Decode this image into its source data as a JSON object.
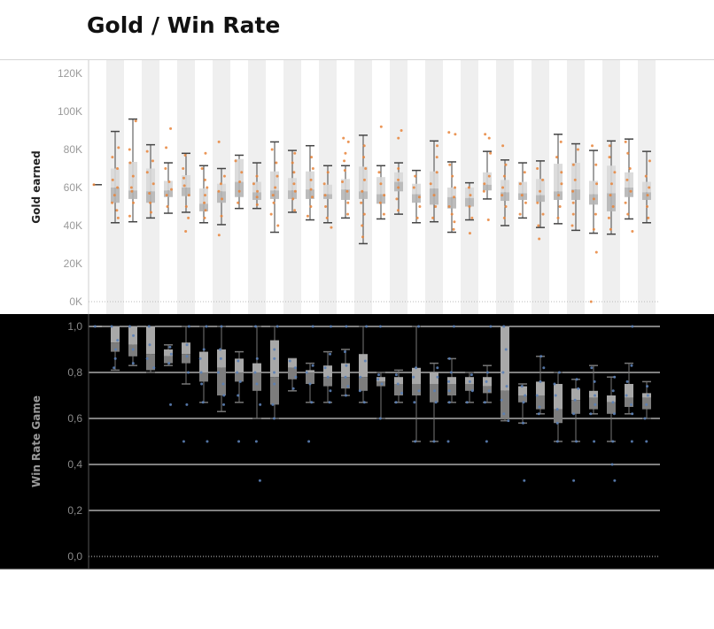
{
  "title": "Gold / Win Rate",
  "colors": {
    "top_background": "#ffffff",
    "top_band": "#efefef",
    "top_points": "#e8843a",
    "top_whisker": "#444444",
    "top_box": "#c8c8c8",
    "bottom_background": "#000000",
    "bottom_gridline": "#ffffff",
    "bottom_points": "#5b7fb5",
    "bottom_whisker": "#777777",
    "bottom_box": "#9a9a9a"
  },
  "chart_data": [
    {
      "type": "boxplot",
      "ylabel": "Gold earned",
      "ylim": [
        0,
        125000
      ],
      "yticks": [
        "0K",
        "20K",
        "40K",
        "60K",
        "80K",
        "100K",
        "120K"
      ],
      "ytick_values": [
        0,
        20000,
        40000,
        60000,
        80000,
        100000,
        120000
      ],
      "grid": false,
      "alternating_bands": true,
      "n_groups": 32,
      "boxes": [
        {
          "min": 61500,
          "q1": 61500,
          "median": 61500,
          "q3": 61500,
          "max": 61500,
          "points": [
            61500
          ]
        },
        {
          "min": 41500,
          "q1": 52000,
          "median": 60000,
          "q3": 70000,
          "max": 89500,
          "points": [
            44000,
            48000,
            52000,
            56000,
            60000,
            64000,
            70000,
            76000,
            81000
          ]
        },
        {
          "min": 42000,
          "q1": 54000,
          "median": 58500,
          "q3": 73500,
          "max": 96000,
          "points": [
            45000,
            52000,
            58000,
            60000,
            66000,
            73000,
            80000,
            95000
          ]
        },
        {
          "min": 44000,
          "q1": 52000,
          "median": 58000,
          "q3": 70000,
          "max": 82500,
          "points": [
            47000,
            52000,
            57000,
            62000,
            68000,
            74000,
            79000
          ]
        },
        {
          "min": 46500,
          "q1": 55000,
          "median": 58500,
          "q3": 63500,
          "max": 73000,
          "points": [
            50000,
            56000,
            59000,
            63000,
            70000,
            81000,
            91000
          ]
        },
        {
          "min": 47000,
          "q1": 55500,
          "median": 60000,
          "q3": 66500,
          "max": 78000,
          "points": [
            37000,
            44000,
            50000,
            56000,
            61000,
            65000,
            70000,
            77000
          ]
        },
        {
          "min": 41500,
          "q1": 47500,
          "median": 51500,
          "q3": 59500,
          "max": 71500,
          "points": [
            44000,
            48000,
            52000,
            56000,
            60000,
            64000,
            70000,
            78000
          ]
        },
        {
          "min": 40500,
          "q1": 52000,
          "median": 58000,
          "q3": 62000,
          "max": 70000,
          "points": [
            35000,
            45000,
            54000,
            58000,
            62000,
            66000,
            84000
          ]
        },
        {
          "min": 49000,
          "q1": 55000,
          "median": 63000,
          "q3": 75000,
          "max": 77000,
          "points": [
            52000,
            58000,
            63000,
            68000,
            74000
          ]
        },
        {
          "min": 49000,
          "q1": 53500,
          "median": 57500,
          "q3": 63000,
          "max": 73000,
          "points": [
            51000,
            55000,
            58000,
            62000,
            66000
          ]
        },
        {
          "min": 36500,
          "q1": 54000,
          "median": 58500,
          "q3": 68500,
          "max": 84000,
          "points": [
            40000,
            46000,
            52000,
            56000,
            60000,
            66000,
            73000,
            80000
          ]
        },
        {
          "min": 47000,
          "q1": 54000,
          "median": 58500,
          "q3": 65000,
          "max": 79500,
          "points": [
            48000,
            54000,
            58000,
            62000,
            68000,
            73000,
            78000
          ]
        },
        {
          "min": 43000,
          "q1": 54000,
          "median": 59000,
          "q3": 68500,
          "max": 82000,
          "points": [
            45000,
            50000,
            55000,
            59000,
            64000,
            70000,
            76000
          ]
        },
        {
          "min": 41500,
          "q1": 54000,
          "median": 56500,
          "q3": 61500,
          "max": 71500,
          "points": [
            39000,
            44000,
            50000,
            56000,
            62000,
            68000
          ]
        },
        {
          "min": 44000,
          "q1": 53500,
          "median": 59000,
          "q3": 64500,
          "max": 71500,
          "points": [
            46000,
            52000,
            58000,
            63000,
            69000,
            74000,
            78000,
            84000,
            86000
          ]
        },
        {
          "min": 30500,
          "q1": 54000,
          "median": 58000,
          "q3": 71000,
          "max": 87500,
          "points": [
            34000,
            40000,
            46000,
            52000,
            58000,
            64000,
            70000,
            76000,
            82000
          ]
        },
        {
          "min": 43500,
          "q1": 51500,
          "median": 56500,
          "q3": 65500,
          "max": 71500,
          "points": [
            46000,
            52000,
            56000,
            62000,
            68000,
            92000
          ]
        },
        {
          "min": 46000,
          "q1": 58000,
          "median": 63000,
          "q3": 68000,
          "max": 73000,
          "points": [
            48000,
            54000,
            60000,
            64000,
            70000,
            86000,
            90000
          ]
        },
        {
          "min": 41500,
          "q1": 52000,
          "median": 56500,
          "q3": 62000,
          "max": 69000,
          "points": [
            44000,
            50000,
            55000,
            60000,
            66000
          ]
        },
        {
          "min": 42000,
          "q1": 51000,
          "median": 59500,
          "q3": 68500,
          "max": 84500,
          "points": [
            44000,
            50000,
            56000,
            62000,
            68000,
            76000,
            82000
          ]
        },
        {
          "min": 36500,
          "q1": 49000,
          "median": 55000,
          "q3": 60000,
          "max": 73500,
          "points": [
            38000,
            42000,
            46000,
            50000,
            55000,
            60000,
            66000,
            72000,
            88000,
            89000
          ]
        },
        {
          "min": 43000,
          "q1": 50000,
          "median": 54500,
          "q3": 60000,
          "max": 62500,
          "points": [
            36000,
            44000,
            50000,
            56000,
            60000
          ]
        },
        {
          "min": 54000,
          "q1": 58500,
          "median": 61500,
          "q3": 68000,
          "max": 79000,
          "points": [
            43000,
            58000,
            62000,
            66000,
            78000,
            86000,
            88000
          ]
        },
        {
          "min": 40000,
          "q1": 53000,
          "median": 57500,
          "q3": 64000,
          "max": 74500,
          "points": [
            44000,
            50000,
            56000,
            60000,
            66000,
            72000,
            82000
          ]
        },
        {
          "min": 44000,
          "q1": 53500,
          "median": 57000,
          "q3": 63000,
          "max": 73000,
          "points": [
            46000,
            52000,
            56000,
            62000,
            68000
          ]
        },
        {
          "min": 39000,
          "q1": 52500,
          "median": 56000,
          "q3": 64500,
          "max": 74000,
          "points": [
            33000,
            40000,
            46000,
            52000,
            58000,
            64000,
            70000
          ]
        },
        {
          "min": 41000,
          "q1": 53500,
          "median": 58000,
          "q3": 72500,
          "max": 88000,
          "points": [
            44000,
            50000,
            56000,
            62000,
            68000,
            76000,
            84000
          ]
        },
        {
          "min": 37500,
          "q1": 53500,
          "median": 59000,
          "q3": 73000,
          "max": 83000,
          "points": [
            40000,
            46000,
            52000,
            58000,
            64000,
            72000,
            80000
          ]
        },
        {
          "min": 36000,
          "q1": 51000,
          "median": 56500,
          "q3": 63500,
          "max": 79500,
          "points": [
            0,
            26000,
            38000,
            46000,
            54000,
            62000,
            72000,
            82000
          ]
        },
        {
          "min": 35500,
          "q1": 47500,
          "median": 57000,
          "q3": 71500,
          "max": 84500,
          "points": [
            38000,
            44000,
            50000,
            56000,
            62000,
            68000,
            76000,
            82000
          ]
        },
        {
          "min": 43500,
          "q1": 55000,
          "median": 60000,
          "q3": 68000,
          "max": 85500,
          "points": [
            37000,
            46000,
            52000,
            58000,
            64000,
            70000,
            78000,
            84000
          ]
        },
        {
          "min": 41500,
          "q1": 53500,
          "median": 57500,
          "q3": 63000,
          "max": 79000,
          "points": [
            44000,
            50000,
            56000,
            60000,
            66000,
            74000
          ]
        }
      ]
    },
    {
      "type": "boxplot",
      "ylabel": "Win Rate Game",
      "ylim": [
        0,
        1
      ],
      "yticks": [
        "0,0",
        "0,2",
        "0,4",
        "0,6",
        "0,8",
        "1,0"
      ],
      "ytick_values": [
        0,
        0.2,
        0.4,
        0.6,
        0.8,
        1.0
      ],
      "grid": true,
      "n_groups": 32,
      "boxes": [
        {
          "min": 1.0,
          "q1": 1.0,
          "median": 1.0,
          "q3": 1.0,
          "max": 1.0,
          "points": [
            1.0
          ]
        },
        {
          "min": 0.81,
          "q1": 0.89,
          "median": 0.93,
          "q3": 1.0,
          "max": 1.0,
          "points": [
            0.82,
            0.86,
            0.9,
            0.94,
            1.0
          ]
        },
        {
          "min": 0.83,
          "q1": 0.87,
          "median": 0.92,
          "q3": 1.0,
          "max": 1.0,
          "points": [
            0.84,
            0.9,
            0.96,
            1.0
          ]
        },
        {
          "min": 0.8,
          "q1": 0.81,
          "median": 0.88,
          "q3": 1.0,
          "max": 1.0,
          "points": [
            0.82,
            0.86,
            0.92,
            1.0
          ]
        },
        {
          "min": 0.83,
          "q1": 0.84,
          "median": 0.87,
          "q3": 0.9,
          "max": 0.92,
          "points": [
            0.66,
            0.84,
            0.88,
            0.91
          ]
        },
        {
          "min": 0.75,
          "q1": 0.84,
          "median": 0.88,
          "q3": 0.93,
          "max": 1.0,
          "points": [
            0.5,
            0.66,
            0.8,
            0.87,
            0.92,
            1.0
          ]
        },
        {
          "min": 0.67,
          "q1": 0.76,
          "median": 0.8,
          "q3": 0.89,
          "max": 1.0,
          "points": [
            0.5,
            0.67,
            0.75,
            0.8,
            0.86,
            0.9,
            1.0
          ]
        },
        {
          "min": 0.63,
          "q1": 0.7,
          "median": 0.82,
          "q3": 0.9,
          "max": 1.0,
          "points": [
            0.66,
            0.7,
            0.75,
            0.8,
            0.86,
            0.9,
            1.0
          ]
        },
        {
          "min": 0.67,
          "q1": 0.76,
          "median": 0.8,
          "q3": 0.86,
          "max": 0.89,
          "points": [
            0.5,
            0.7,
            0.76,
            0.8,
            0.85
          ]
        },
        {
          "min": 0.6,
          "q1": 0.72,
          "median": 0.8,
          "q3": 0.84,
          "max": 1.0,
          "points": [
            0.33,
            0.5,
            0.66,
            0.75,
            0.8,
            0.86,
            1.0
          ]
        },
        {
          "min": 0.6,
          "q1": 0.66,
          "median": 0.78,
          "q3": 0.94,
          "max": 1.0,
          "points": [
            0.6,
            0.66,
            0.75,
            0.8,
            0.86,
            0.9,
            1.0
          ]
        },
        {
          "min": 0.72,
          "q1": 0.77,
          "median": 0.82,
          "q3": 0.86,
          "max": 0.86,
          "points": [
            0.73,
            0.78,
            0.82,
            0.85
          ]
        },
        {
          "min": 0.67,
          "q1": 0.75,
          "median": 0.8,
          "q3": 0.81,
          "max": 0.84,
          "points": [
            0.5,
            0.67,
            0.75,
            0.8,
            0.83,
            1.0
          ]
        },
        {
          "min": 0.67,
          "q1": 0.74,
          "median": 0.78,
          "q3": 0.83,
          "max": 0.89,
          "points": [
            0.67,
            0.72,
            0.78,
            0.82,
            0.88,
            1.0
          ]
        },
        {
          "min": 0.7,
          "q1": 0.73,
          "median": 0.78,
          "q3": 0.84,
          "max": 0.9,
          "points": [
            0.7,
            0.74,
            0.78,
            0.83,
            0.89,
            1.0
          ]
        },
        {
          "min": 0.67,
          "q1": 0.72,
          "median": 0.78,
          "q3": 0.88,
          "max": 1.0,
          "points": [
            0.67,
            0.72,
            0.78,
            0.85,
            1.0
          ]
        },
        {
          "min": 0.6,
          "q1": 0.74,
          "median": 0.76,
          "q3": 0.78,
          "max": 0.8,
          "points": [
            0.6,
            0.75,
            0.77,
            0.79,
            1.0
          ]
        },
        {
          "min": 0.67,
          "q1": 0.7,
          "median": 0.75,
          "q3": 0.78,
          "max": 0.81,
          "points": [
            0.67,
            0.71,
            0.75,
            0.79
          ]
        },
        {
          "min": 0.5,
          "q1": 0.7,
          "median": 0.75,
          "q3": 0.82,
          "max": 1.0,
          "points": [
            0.5,
            0.67,
            0.72,
            0.78,
            0.82,
            1.0
          ]
        },
        {
          "min": 0.5,
          "q1": 0.67,
          "median": 0.75,
          "q3": 0.8,
          "max": 0.84,
          "points": [
            0.5,
            0.67,
            0.72,
            0.78,
            0.82
          ]
        },
        {
          "min": 0.67,
          "q1": 0.7,
          "median": 0.75,
          "q3": 0.78,
          "max": 0.86,
          "points": [
            0.5,
            0.67,
            0.72,
            0.76,
            0.8,
            0.86,
            1.0
          ]
        },
        {
          "min": 0.67,
          "q1": 0.72,
          "median": 0.75,
          "q3": 0.78,
          "max": 0.8,
          "points": [
            0.67,
            0.72,
            0.76,
            0.79
          ]
        },
        {
          "min": 0.67,
          "q1": 0.71,
          "median": 0.74,
          "q3": 0.78,
          "max": 0.83,
          "points": [
            0.5,
            0.67,
            0.72,
            0.76,
            0.8,
            1.0
          ]
        },
        {
          "min": 0.59,
          "q1": 0.6,
          "median": 0.72,
          "q3": 1.0,
          "max": 1.0,
          "points": [
            0.59,
            0.62,
            0.68,
            0.74,
            0.8,
            0.9,
            1.0
          ]
        },
        {
          "min": 0.58,
          "q1": 0.67,
          "median": 0.7,
          "q3": 0.74,
          "max": 0.75,
          "points": [
            0.33,
            0.58,
            0.67,
            0.7,
            0.74
          ]
        },
        {
          "min": 0.62,
          "q1": 0.64,
          "median": 0.7,
          "q3": 0.76,
          "max": 0.87,
          "points": [
            0.62,
            0.65,
            0.7,
            0.76,
            0.82,
            0.87
          ]
        },
        {
          "min": 0.5,
          "q1": 0.58,
          "median": 0.64,
          "q3": 0.75,
          "max": 0.8,
          "points": [
            0.5,
            0.58,
            0.64,
            0.7,
            0.75,
            0.8
          ]
        },
        {
          "min": 0.5,
          "q1": 0.62,
          "median": 0.68,
          "q3": 0.73,
          "max": 0.77,
          "points": [
            0.33,
            0.5,
            0.62,
            0.68,
            0.73,
            0.77
          ]
        },
        {
          "min": 0.62,
          "q1": 0.64,
          "median": 0.69,
          "q3": 0.72,
          "max": 0.83,
          "points": [
            0.5,
            0.62,
            0.66,
            0.7,
            0.76,
            0.82
          ]
        },
        {
          "min": 0.5,
          "q1": 0.62,
          "median": 0.67,
          "q3": 0.7,
          "max": 0.78,
          "points": [
            0.33,
            0.4,
            0.5,
            0.62,
            0.67,
            0.72,
            0.78
          ]
        },
        {
          "min": 0.62,
          "q1": 0.65,
          "median": 0.69,
          "q3": 0.75,
          "max": 0.84,
          "points": [
            0.5,
            0.62,
            0.66,
            0.7,
            0.76,
            0.83,
            1.0
          ]
        },
        {
          "min": 0.6,
          "q1": 0.64,
          "median": 0.69,
          "q3": 0.71,
          "max": 0.76,
          "points": [
            0.5,
            0.6,
            0.66,
            0.7,
            0.74
          ]
        }
      ]
    }
  ]
}
